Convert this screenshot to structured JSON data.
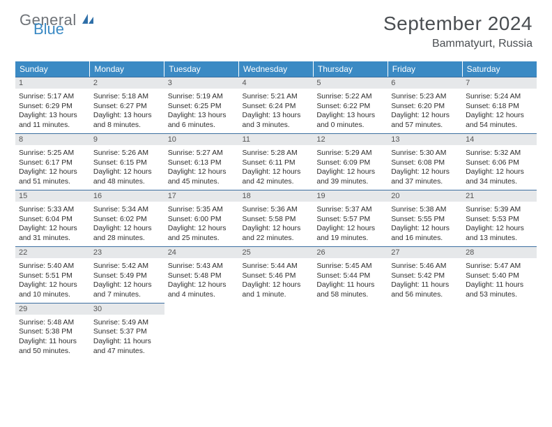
{
  "logo": {
    "word1": "General",
    "word2": "Blue",
    "icon_color": "#2f6fa8"
  },
  "title": "September 2024",
  "location": "Bammatyurt, Russia",
  "colors": {
    "header_bg": "#3b8ac4",
    "header_text": "#ffffff",
    "daynum_bg": "#e6e8ea",
    "daynum_border": "#3b6fa0",
    "body_text": "#2d2d2d",
    "logo_gray": "#6f7378",
    "logo_blue": "#3b8ac4"
  },
  "weekdays": [
    "Sunday",
    "Monday",
    "Tuesday",
    "Wednesday",
    "Thursday",
    "Friday",
    "Saturday"
  ],
  "days": [
    {
      "n": "1",
      "sr": "5:17 AM",
      "ss": "6:29 PM",
      "dl": "13 hours and 11 minutes."
    },
    {
      "n": "2",
      "sr": "5:18 AM",
      "ss": "6:27 PM",
      "dl": "13 hours and 8 minutes."
    },
    {
      "n": "3",
      "sr": "5:19 AM",
      "ss": "6:25 PM",
      "dl": "13 hours and 6 minutes."
    },
    {
      "n": "4",
      "sr": "5:21 AM",
      "ss": "6:24 PM",
      "dl": "13 hours and 3 minutes."
    },
    {
      "n": "5",
      "sr": "5:22 AM",
      "ss": "6:22 PM",
      "dl": "13 hours and 0 minutes."
    },
    {
      "n": "6",
      "sr": "5:23 AM",
      "ss": "6:20 PM",
      "dl": "12 hours and 57 minutes."
    },
    {
      "n": "7",
      "sr": "5:24 AM",
      "ss": "6:18 PM",
      "dl": "12 hours and 54 minutes."
    },
    {
      "n": "8",
      "sr": "5:25 AM",
      "ss": "6:17 PM",
      "dl": "12 hours and 51 minutes."
    },
    {
      "n": "9",
      "sr": "5:26 AM",
      "ss": "6:15 PM",
      "dl": "12 hours and 48 minutes."
    },
    {
      "n": "10",
      "sr": "5:27 AM",
      "ss": "6:13 PM",
      "dl": "12 hours and 45 minutes."
    },
    {
      "n": "11",
      "sr": "5:28 AM",
      "ss": "6:11 PM",
      "dl": "12 hours and 42 minutes."
    },
    {
      "n": "12",
      "sr": "5:29 AM",
      "ss": "6:09 PM",
      "dl": "12 hours and 39 minutes."
    },
    {
      "n": "13",
      "sr": "5:30 AM",
      "ss": "6:08 PM",
      "dl": "12 hours and 37 minutes."
    },
    {
      "n": "14",
      "sr": "5:32 AM",
      "ss": "6:06 PM",
      "dl": "12 hours and 34 minutes."
    },
    {
      "n": "15",
      "sr": "5:33 AM",
      "ss": "6:04 PM",
      "dl": "12 hours and 31 minutes."
    },
    {
      "n": "16",
      "sr": "5:34 AM",
      "ss": "6:02 PM",
      "dl": "12 hours and 28 minutes."
    },
    {
      "n": "17",
      "sr": "5:35 AM",
      "ss": "6:00 PM",
      "dl": "12 hours and 25 minutes."
    },
    {
      "n": "18",
      "sr": "5:36 AM",
      "ss": "5:58 PM",
      "dl": "12 hours and 22 minutes."
    },
    {
      "n": "19",
      "sr": "5:37 AM",
      "ss": "5:57 PM",
      "dl": "12 hours and 19 minutes."
    },
    {
      "n": "20",
      "sr": "5:38 AM",
      "ss": "5:55 PM",
      "dl": "12 hours and 16 minutes."
    },
    {
      "n": "21",
      "sr": "5:39 AM",
      "ss": "5:53 PM",
      "dl": "12 hours and 13 minutes."
    },
    {
      "n": "22",
      "sr": "5:40 AM",
      "ss": "5:51 PM",
      "dl": "12 hours and 10 minutes."
    },
    {
      "n": "23",
      "sr": "5:42 AM",
      "ss": "5:49 PM",
      "dl": "12 hours and 7 minutes."
    },
    {
      "n": "24",
      "sr": "5:43 AM",
      "ss": "5:48 PM",
      "dl": "12 hours and 4 minutes."
    },
    {
      "n": "25",
      "sr": "5:44 AM",
      "ss": "5:46 PM",
      "dl": "12 hours and 1 minute."
    },
    {
      "n": "26",
      "sr": "5:45 AM",
      "ss": "5:44 PM",
      "dl": "11 hours and 58 minutes."
    },
    {
      "n": "27",
      "sr": "5:46 AM",
      "ss": "5:42 PM",
      "dl": "11 hours and 56 minutes."
    },
    {
      "n": "28",
      "sr": "5:47 AM",
      "ss": "5:40 PM",
      "dl": "11 hours and 53 minutes."
    },
    {
      "n": "29",
      "sr": "5:48 AM",
      "ss": "5:38 PM",
      "dl": "11 hours and 50 minutes."
    },
    {
      "n": "30",
      "sr": "5:49 AM",
      "ss": "5:37 PM",
      "dl": "11 hours and 47 minutes."
    }
  ],
  "labels": {
    "sunrise": "Sunrise:",
    "sunset": "Sunset:",
    "daylight": "Daylight:"
  }
}
